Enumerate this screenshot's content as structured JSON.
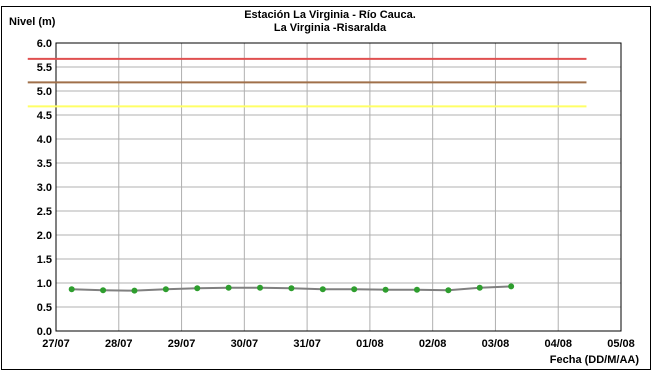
{
  "chart_data": {
    "type": "line",
    "title": "Estación La Virginia  - Río Cauca.",
    "subtitle": "La Virginia -Risaralda",
    "ylabel": "Nivel (m)",
    "xlabel": "Fecha (DD/M/AA)",
    "ylim": [
      0.0,
      6.0
    ],
    "y_ticks": [
      "0.0",
      "0.5",
      "1.0",
      "1.5",
      "2.0",
      "2.5",
      "3.0",
      "3.5",
      "4.0",
      "4.5",
      "5.0",
      "5.5",
      "6.0"
    ],
    "x_ticks": [
      "27/07",
      "28/07",
      "29/07",
      "30/07",
      "31/07",
      "01/08",
      "02/08",
      "03/08",
      "04/08",
      "05/08"
    ],
    "xlim_days": [
      0,
      9
    ],
    "grid": true,
    "reference_lines": [
      {
        "value": 5.67,
        "color": "#e05050"
      },
      {
        "value": 5.18,
        "color": "#a0704a"
      },
      {
        "value": 4.68,
        "color": "#ffff66"
      }
    ],
    "reference_line_x_range": [
      -0.45,
      8.45
    ],
    "series": [
      {
        "color": "#808080",
        "marker_color": "#2e9e2e",
        "x": [
          0.25,
          0.75,
          1.25,
          1.75,
          2.25,
          2.75,
          3.25,
          3.75,
          4.25,
          4.75,
          5.25,
          5.75,
          6.25,
          6.75,
          7.25
        ],
        "values": [
          0.87,
          0.85,
          0.84,
          0.87,
          0.89,
          0.9,
          0.9,
          0.89,
          0.87,
          0.87,
          0.86,
          0.86,
          0.85,
          0.9,
          0.93
        ]
      }
    ]
  }
}
